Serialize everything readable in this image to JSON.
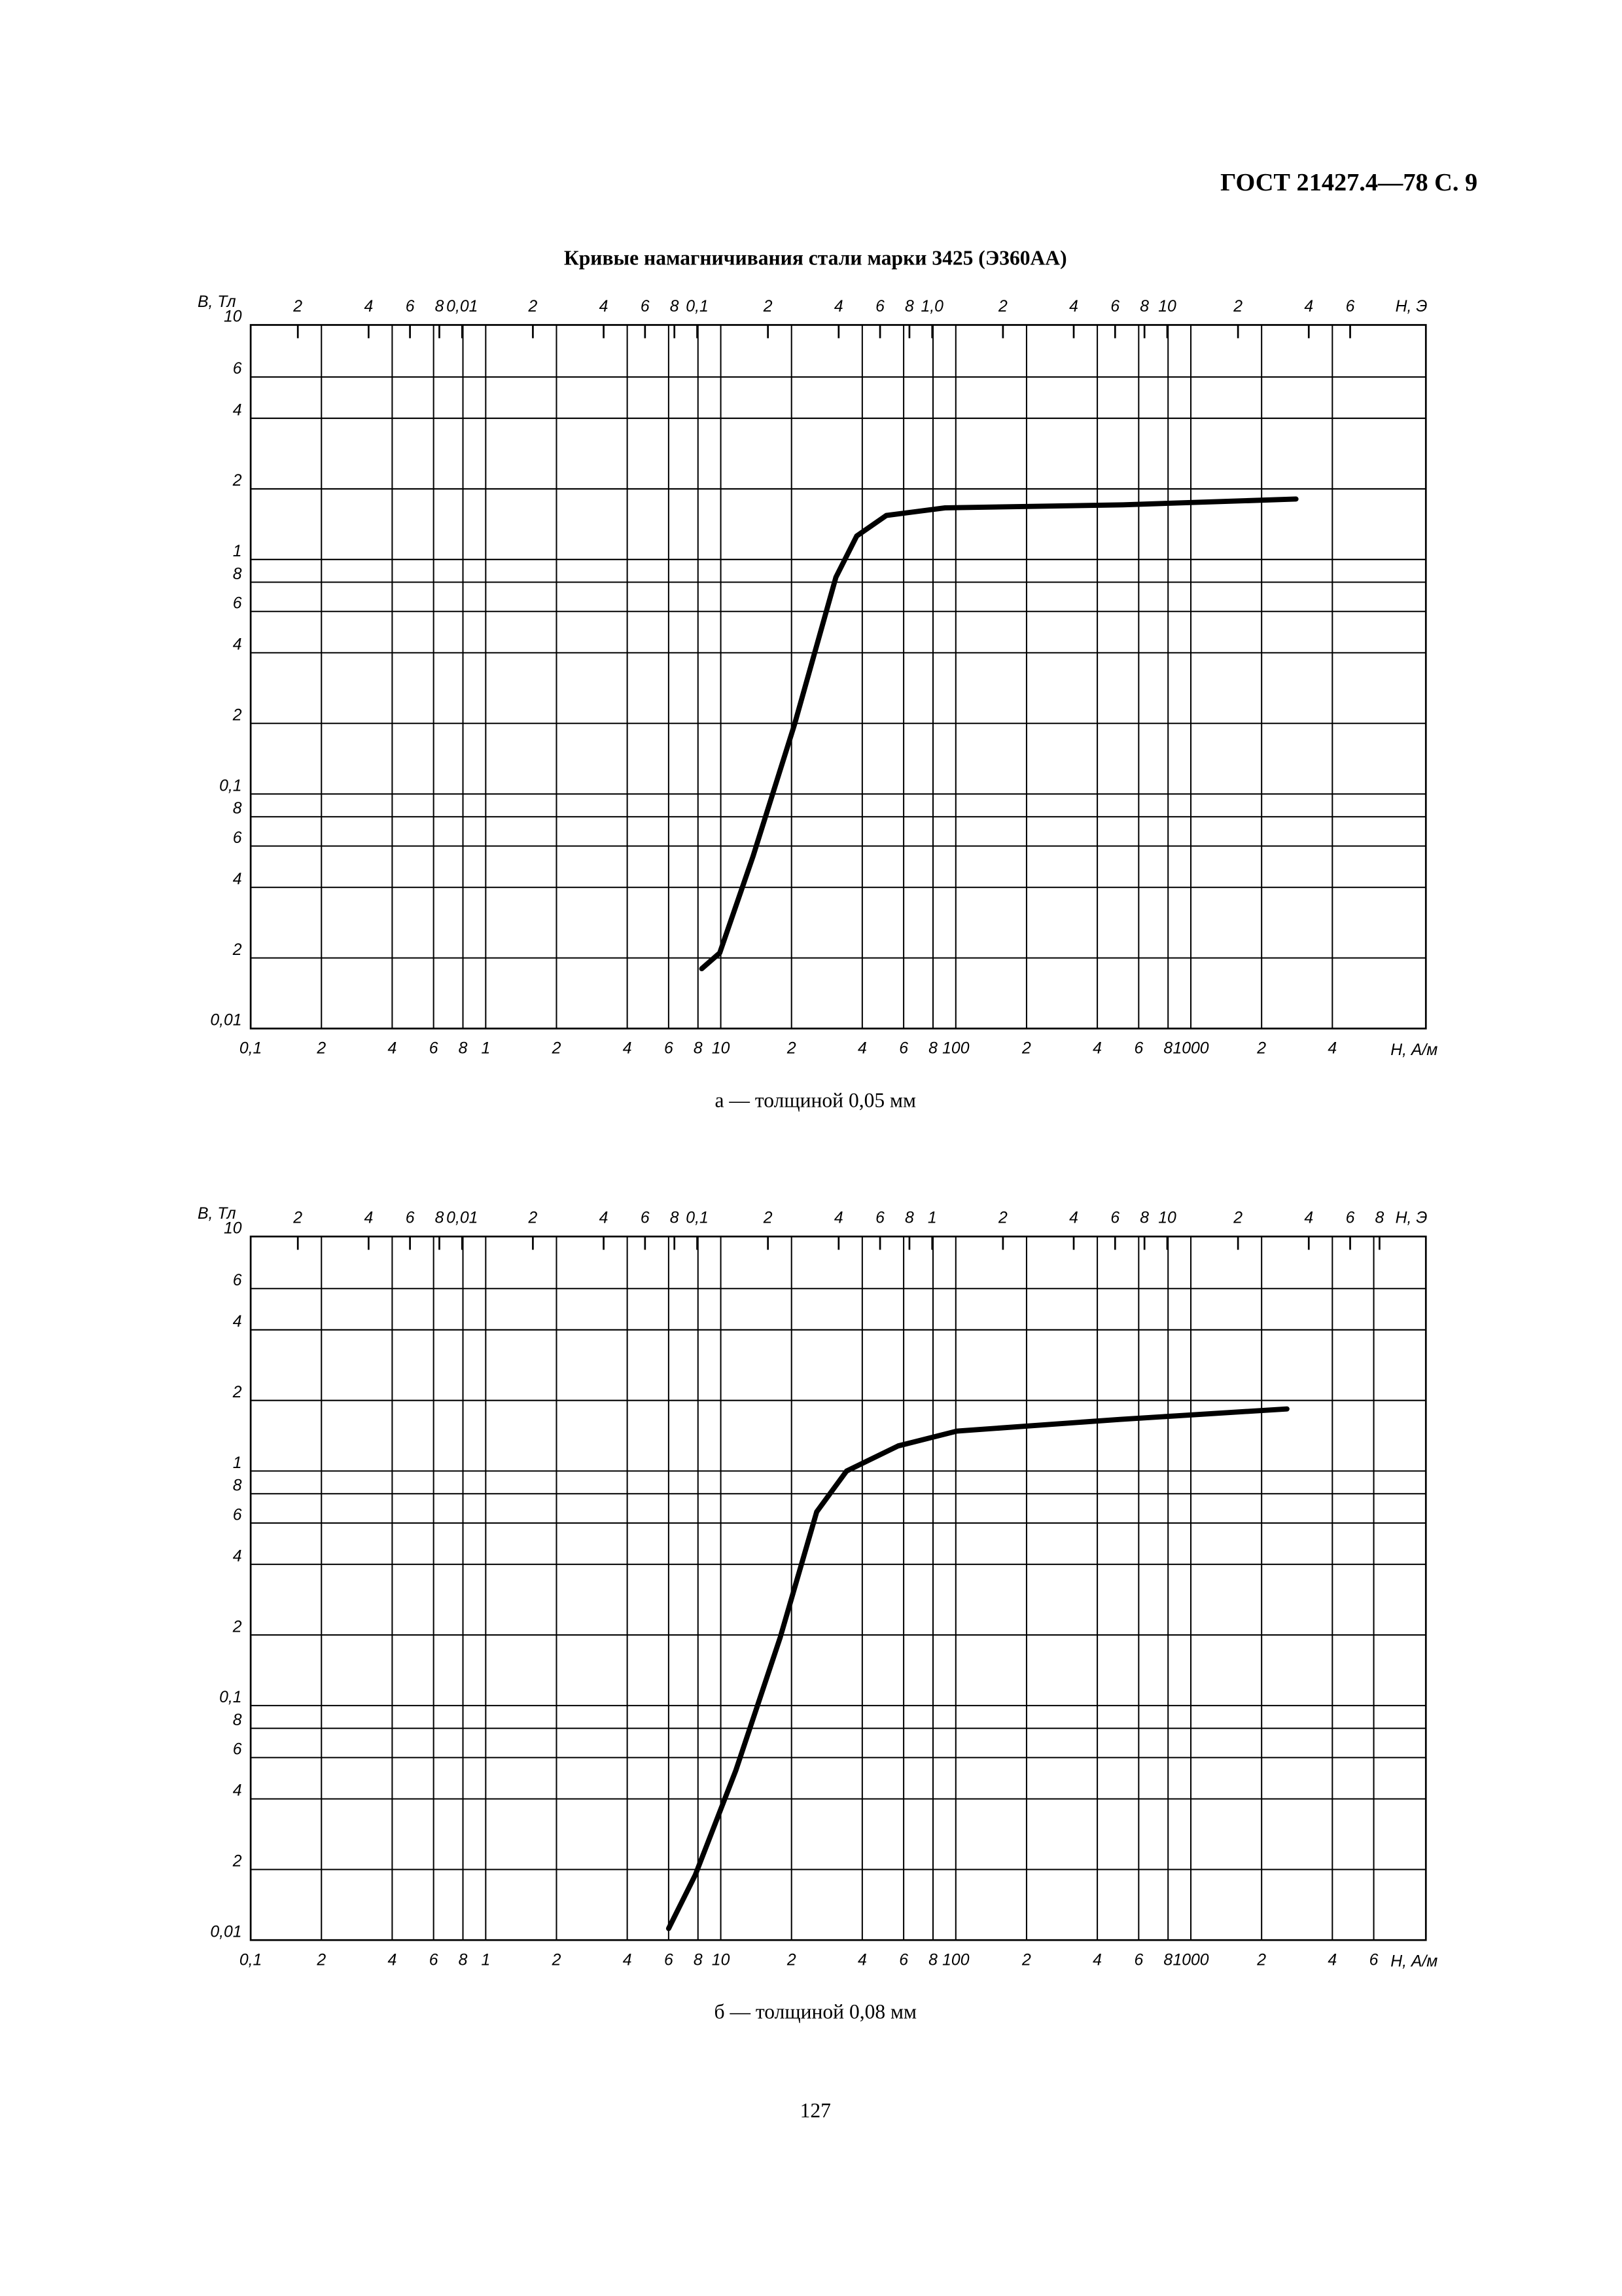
{
  "header": "ГОСТ 21427.4—78 С. 9",
  "title": "Кривые намагничивания стали марки 3425 (Э360АА)",
  "page_number": "127",
  "chart_data": [
    {
      "type": "line",
      "caption": "а — толщиной 0,05 мм",
      "y_label": "B, Тл",
      "x_label": "H, А/м",
      "x2_label": "H, Э",
      "xscale": "log",
      "yscale": "log",
      "grid": true,
      "color": "#000000",
      "xlim": [
        0.1,
        10000
      ],
      "ylim": [
        0.01,
        10
      ],
      "x2lim": [
        0.00126,
        126
      ],
      "xticks": [
        {
          "value": 0.1,
          "label": "0,1"
        },
        {
          "value": 0.2,
          "label": "2"
        },
        {
          "value": 0.4,
          "label": "4"
        },
        {
          "value": 0.6,
          "label": "6"
        },
        {
          "value": 0.8,
          "label": "8"
        },
        1,
        2,
        4,
        6,
        8,
        10,
        {
          "value": 20,
          "label": "2"
        },
        {
          "value": 40,
          "label": "4"
        },
        {
          "value": 60,
          "label": "6"
        },
        {
          "value": 80,
          "label": "8"
        },
        100,
        {
          "value": 200,
          "label": "2"
        },
        {
          "value": 400,
          "label": "4"
        },
        {
          "value": 600,
          "label": "6"
        },
        {
          "value": 800,
          "label": "8"
        },
        1000,
        {
          "value": 2000,
          "label": "2"
        },
        {
          "value": 4000,
          "label": "4"
        }
      ],
      "x2ticks": [
        {
          "value": 0.002,
          "label": "2"
        },
        {
          "value": 0.004,
          "label": "4"
        },
        {
          "value": 0.006,
          "label": "6"
        },
        {
          "value": 0.008,
          "label": "8"
        },
        {
          "value": 0.01,
          "label": "0,01"
        },
        {
          "value": 0.02,
          "label": "2"
        },
        {
          "value": 0.04,
          "label": "4"
        },
        {
          "value": 0.06,
          "label": "6"
        },
        {
          "value": 0.08,
          "label": "8"
        },
        {
          "value": 0.1,
          "label": "0,1"
        },
        {
          "value": 0.2,
          "label": "2"
        },
        {
          "value": 0.4,
          "label": "4"
        },
        {
          "value": 0.6,
          "label": "6"
        },
        {
          "value": 0.8,
          "label": "8"
        },
        {
          "value": 1,
          "label": "1,0"
        },
        2,
        4,
        6,
        8,
        10,
        {
          "value": 20,
          "label": "2"
        },
        {
          "value": 40,
          "label": "4"
        },
        {
          "value": 60,
          "label": "6"
        }
      ],
      "yticks": [
        {
          "value": 0.01,
          "label": "0,01"
        },
        {
          "value": 0.02,
          "label": "2"
        },
        {
          "value": 0.04,
          "label": "4"
        },
        {
          "value": 0.06,
          "label": "6"
        },
        {
          "value": 0.08,
          "label": "8"
        },
        {
          "value": 0.1,
          "label": "0,1"
        },
        {
          "value": 0.2,
          "label": "2"
        },
        {
          "value": 0.4,
          "label": "4"
        },
        {
          "value": 0.6,
          "label": "6"
        },
        {
          "value": 0.8,
          "label": "8"
        },
        1,
        2,
        4,
        6,
        10
      ],
      "x": [
        8.3,
        9.9,
        13.7,
        20.6,
        30.9,
        37.9,
        50.6,
        90,
        514,
        2800
      ],
      "values": [
        0.018,
        0.021,
        0.054,
        0.198,
        0.84,
        1.26,
        1.54,
        1.66,
        1.71,
        1.81
      ]
    },
    {
      "type": "line",
      "caption": "б — толщиной 0,08 мм",
      "y_label": "B, Тл",
      "x_label": "H, А/м",
      "x2_label": "H, Э",
      "xscale": "log",
      "yscale": "log",
      "grid": true,
      "color": "#000000",
      "xlim": [
        0.1,
        10000
      ],
      "ylim": [
        0.01,
        10
      ],
      "x2lim": [
        0.00126,
        126
      ],
      "xticks": [
        {
          "value": 0.1,
          "label": "0,1"
        },
        {
          "value": 0.2,
          "label": "2"
        },
        {
          "value": 0.4,
          "label": "4"
        },
        {
          "value": 0.6,
          "label": "6"
        },
        {
          "value": 0.8,
          "label": "8"
        },
        1,
        2,
        4,
        6,
        8,
        10,
        {
          "value": 20,
          "label": "2"
        },
        {
          "value": 40,
          "label": "4"
        },
        {
          "value": 60,
          "label": "6"
        },
        {
          "value": 80,
          "label": "8"
        },
        100,
        {
          "value": 200,
          "label": "2"
        },
        {
          "value": 400,
          "label": "4"
        },
        {
          "value": 600,
          "label": "6"
        },
        {
          "value": 800,
          "label": "8"
        },
        1000,
        {
          "value": 2000,
          "label": "2"
        },
        {
          "value": 4000,
          "label": "4"
        },
        {
          "value": 6000,
          "label": "6"
        }
      ],
      "x2ticks": [
        {
          "value": 0.002,
          "label": "2"
        },
        {
          "value": 0.004,
          "label": "4"
        },
        {
          "value": 0.006,
          "label": "6"
        },
        {
          "value": 0.008,
          "label": "8"
        },
        {
          "value": 0.01,
          "label": "0,01"
        },
        {
          "value": 0.02,
          "label": "2"
        },
        {
          "value": 0.04,
          "label": "4"
        },
        {
          "value": 0.06,
          "label": "6"
        },
        {
          "value": 0.08,
          "label": "8"
        },
        {
          "value": 0.1,
          "label": "0,1"
        },
        {
          "value": 0.2,
          "label": "2"
        },
        {
          "value": 0.4,
          "label": "4"
        },
        {
          "value": 0.6,
          "label": "6"
        },
        {
          "value": 0.8,
          "label": "8"
        },
        1,
        2,
        4,
        6,
        8,
        10,
        {
          "value": 20,
          "label": "2"
        },
        {
          "value": 40,
          "label": "4"
        },
        {
          "value": 60,
          "label": "6"
        },
        {
          "value": 80,
          "label": "8"
        }
      ],
      "yticks": [
        {
          "value": 0.01,
          "label": "0,01"
        },
        {
          "value": 0.02,
          "label": "2"
        },
        {
          "value": 0.04,
          "label": "4"
        },
        {
          "value": 0.06,
          "label": "6"
        },
        {
          "value": 0.08,
          "label": "8"
        },
        {
          "value": 0.1,
          "label": "0,1"
        },
        {
          "value": 0.2,
          "label": "2"
        },
        {
          "value": 0.4,
          "label": "4"
        },
        {
          "value": 0.6,
          "label": "6"
        },
        {
          "value": 0.8,
          "label": "8"
        },
        1,
        2,
        4,
        6,
        10
      ],
      "x": [
        6.0,
        7.8,
        11.6,
        17.9,
        25.6,
        34.3,
        56.9,
        101,
        499,
        2564
      ],
      "values": [
        0.0112,
        0.019,
        0.053,
        0.195,
        0.67,
        1.0,
        1.28,
        1.48,
        1.66,
        1.84
      ]
    }
  ]
}
